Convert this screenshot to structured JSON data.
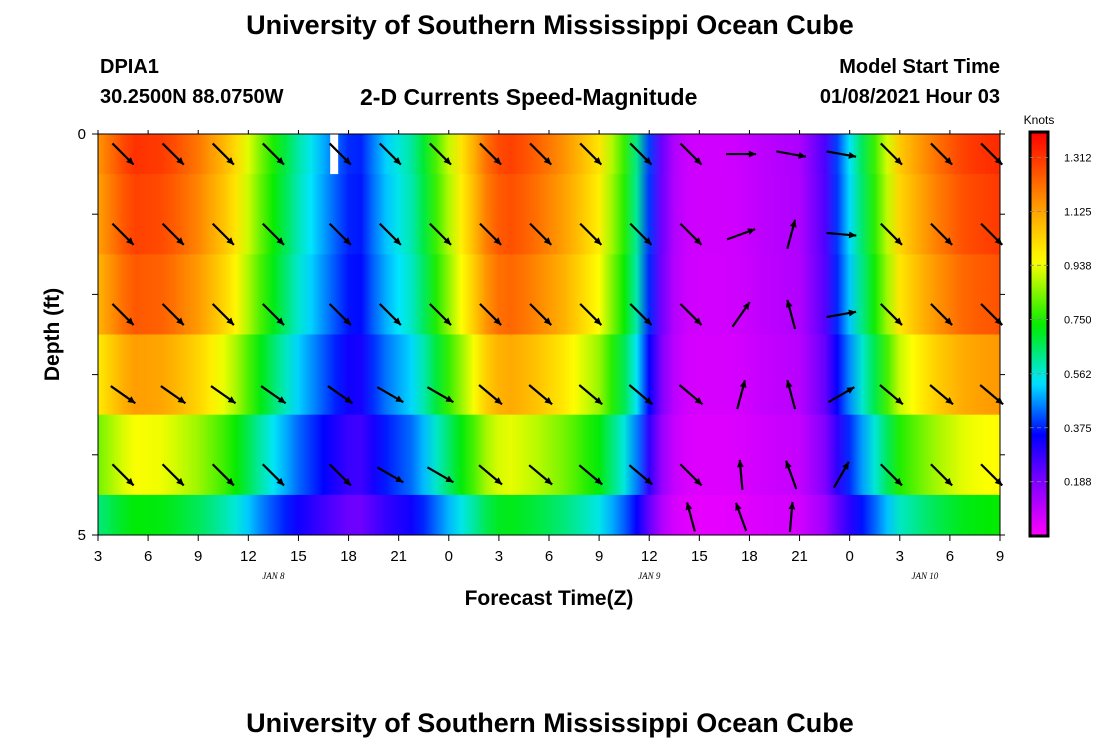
{
  "header": {
    "title": "University of Southern Mississippi Ocean Cube",
    "station": "DPIA1",
    "coords": "30.2500N 88.0750W",
    "subtitle": "2-D Currents Speed-Magnitude",
    "model_start_label": "Model Start Time",
    "model_start_value": "01/08/2021 Hour 03"
  },
  "footer": {
    "title": "University of Southern Mississippi Ocean Cube"
  },
  "chart_data": {
    "type": "heatmap",
    "xlabel": "Forecast Time(Z)",
    "ylabel": "Depth (ft)",
    "x_tick_labels": [
      "3",
      "6",
      "9",
      "12",
      "15",
      "18",
      "21",
      "0",
      "3",
      "6",
      "9",
      "12",
      "15",
      "18",
      "21",
      "0",
      "3",
      "6",
      "9"
    ],
    "x_range_hours": [
      0,
      54
    ],
    "date_labels": [
      {
        "text": "JAN  8",
        "hour": 10.5
      },
      {
        "text": "JAN  9",
        "hour": 33
      },
      {
        "text": "JAN 10",
        "hour": 49.5
      }
    ],
    "y_tick_labels": [
      "0",
      "5"
    ],
    "y_range": [
      0,
      5
    ],
    "depth_rows": [
      0.25,
      1.0,
      2.0,
      3.0,
      4.0,
      4.75
    ],
    "colorbar": {
      "unit": "Knots",
      "range": [
        0.0,
        1.4
      ],
      "ticks": [
        "1.312",
        "1.125",
        "0.938",
        "0.750",
        "0.562",
        "0.375",
        "0.188"
      ],
      "tick_values": [
        1.312,
        1.125,
        0.938,
        0.75,
        0.562,
        0.375,
        0.188
      ]
    },
    "speed_profile": {
      "hours": [
        0,
        2,
        4,
        6,
        8,
        10,
        12,
        14,
        15.5,
        17,
        19,
        21,
        22.5,
        23.5,
        24.5,
        26,
        28,
        30,
        32,
        33,
        34,
        35,
        36,
        38,
        40,
        42,
        43.5,
        44.5,
        45.5,
        46.5,
        48,
        50,
        52,
        54
      ],
      "surface": [
        1.15,
        1.32,
        1.3,
        1.2,
        1.05,
        0.8,
        0.6,
        0.45,
        0.35,
        0.5,
        0.62,
        0.9,
        1.1,
        1.25,
        1.3,
        1.25,
        1.15,
        1.0,
        0.7,
        0.4,
        0.15,
        0.08,
        0.07,
        0.07,
        0.1,
        0.12,
        0.25,
        0.45,
        0.62,
        0.78,
        1.05,
        1.2,
        1.3,
        1.33
      ],
      "depth_factor": [
        1.0,
        0.98,
        0.95,
        0.86,
        0.72,
        0.55
      ]
    },
    "vectors": {
      "hours": [
        1.5,
        4.5,
        7.5,
        10.5,
        14.5,
        17.5,
        20.5,
        23.5,
        26.5,
        29.5,
        32.5,
        35.5,
        38.5,
        41.5,
        44.5,
        47.5,
        50.5,
        53.5
      ],
      "rows_depth": [
        0.25,
        1.25,
        2.25,
        3.25,
        4.25
      ],
      "directions_deg": [
        [
          135,
          135,
          135,
          135,
          135,
          135,
          135,
          135,
          135,
          135,
          135,
          135,
          90,
          100,
          100,
          135,
          135,
          135
        ],
        [
          135,
          135,
          135,
          135,
          135,
          135,
          135,
          135,
          135,
          135,
          135,
          135,
          70,
          15,
          95,
          135,
          135,
          135
        ],
        [
          135,
          135,
          135,
          135,
          135,
          135,
          135,
          135,
          135,
          135,
          135,
          135,
          35,
          -15,
          80,
          135,
          135,
          135
        ],
        [
          125,
          125,
          125,
          125,
          125,
          120,
          120,
          130,
          130,
          130,
          130,
          130,
          15,
          -15,
          60,
          130,
          130,
          130
        ],
        [
          135,
          135,
          135,
          135,
          135,
          120,
          120,
          130,
          130,
          130,
          130,
          135,
          -5,
          -20,
          30,
          135,
          135,
          135
        ]
      ],
      "bottom_row_hours": [
        35.5,
        38.5,
        41.5
      ],
      "bottom_row_directions_deg": [
        -15,
        -20,
        5
      ]
    }
  }
}
